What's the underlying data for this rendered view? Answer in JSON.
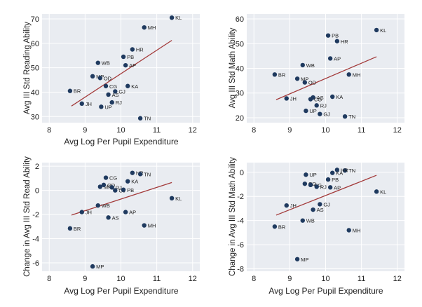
{
  "chart_data": [
    {
      "type": "scatter",
      "xlabel": "Avg Log Per Pupil Expenditure",
      "ylabel": "Avg III Std Reading Ability",
      "xlim": [
        7.8,
        12.2
      ],
      "ylim": [
        27.5,
        72
      ],
      "xticks": [
        8,
        9,
        10,
        11,
        12
      ],
      "yticks": [
        30,
        40,
        50,
        60,
        70
      ],
      "points": [
        {
          "label": "KL",
          "x": 11.42,
          "y": 70.5
        },
        {
          "label": "MH",
          "x": 10.65,
          "y": 66.5
        },
        {
          "label": "HR",
          "x": 10.32,
          "y": 57.5
        },
        {
          "label": "PB",
          "x": 10.07,
          "y": 54.5
        },
        {
          "label": "WB",
          "x": 9.36,
          "y": 52.0
        },
        {
          "label": "AP",
          "x": 10.13,
          "y": 51.0
        },
        {
          "label": "MP",
          "x": 9.21,
          "y": 46.5
        },
        {
          "label": "OD",
          "x": 9.42,
          "y": 45.8
        },
        {
          "label": "CG",
          "x": 9.58,
          "y": 42.5
        },
        {
          "label": "KA",
          "x": 10.19,
          "y": 42.5
        },
        {
          "label": "BR",
          "x": 8.58,
          "y": 40.5
        },
        {
          "label": "GJ",
          "x": 9.84,
          "y": 40.3
        },
        {
          "label": "AS",
          "x": 9.65,
          "y": 39.0
        },
        {
          "label": "RJ",
          "x": 9.75,
          "y": 35.8
        },
        {
          "label": "JH",
          "x": 8.91,
          "y": 35.3
        },
        {
          "label": "UP",
          "x": 9.45,
          "y": 34.0
        },
        {
          "label": "TN",
          "x": 10.54,
          "y": 29.3
        }
      ],
      "fit": {
        "x": [
          8.62,
          11.42
        ],
        "y": [
          34.3,
          61.2
        ]
      }
    },
    {
      "type": "scatter",
      "xlabel": "",
      "ylabel": "Avg III Std Math Ability",
      "xlim": [
        7.8,
        12.2
      ],
      "ylim": [
        18,
        62
      ],
      "xticks": [
        8,
        9,
        10,
        11,
        12
      ],
      "yticks": [
        20,
        30,
        40,
        50,
        60
      ],
      "points": [
        {
          "label": "KL",
          "x": 11.42,
          "y": 55.5
        },
        {
          "label": "PB",
          "x": 10.07,
          "y": 53.3
        },
        {
          "label": "HR",
          "x": 10.32,
          "y": 51.0
        },
        {
          "label": "AP",
          "x": 10.13,
          "y": 44.0
        },
        {
          "label": "WB",
          "x": 9.36,
          "y": 41.3
        },
        {
          "label": "BR",
          "x": 8.58,
          "y": 37.5
        },
        {
          "label": "MH",
          "x": 10.65,
          "y": 37.5
        },
        {
          "label": "MP",
          "x": 9.21,
          "y": 35.8
        },
        {
          "label": "OD",
          "x": 9.42,
          "y": 34.3
        },
        {
          "label": "AS",
          "x": 9.65,
          "y": 28.2
        },
        {
          "label": "CG",
          "x": 9.58,
          "y": 27.5
        },
        {
          "label": "JH",
          "x": 8.91,
          "y": 27.8
        },
        {
          "label": "KA",
          "x": 10.19,
          "y": 28.5
        },
        {
          "label": "RJ",
          "x": 9.75,
          "y": 25.0
        },
        {
          "label": "UP",
          "x": 9.45,
          "y": 22.8
        },
        {
          "label": "GJ",
          "x": 9.84,
          "y": 21.5
        },
        {
          "label": "TN",
          "x": 10.54,
          "y": 20.5
        }
      ],
      "fit": {
        "x": [
          8.62,
          11.42
        ],
        "y": [
          27.3,
          44.7
        ]
      }
    },
    {
      "type": "scatter",
      "xlabel": "Avg Log Per Pupil Expenditure",
      "ylabel": "Change in Avg III Std Read Ability",
      "xlim": [
        7.8,
        12.2
      ],
      "ylim": [
        -6.7,
        2.3
      ],
      "xticks": [
        8,
        9,
        10,
        11,
        12
      ],
      "yticks": [
        -6,
        -4,
        -2,
        0,
        2
      ],
      "points": [
        {
          "label": "HR",
          "x": 10.32,
          "y": 1.45
        },
        {
          "label": "TN",
          "x": 10.54,
          "y": 1.35
        },
        {
          "label": "CG",
          "x": 9.58,
          "y": 1.05
        },
        {
          "label": "KA",
          "x": 10.19,
          "y": 0.75
        },
        {
          "label": "MP",
          "x": 9.42,
          "y": 0.3
        },
        {
          "label": "OD",
          "x": 9.52,
          "y": 0.45
        },
        {
          "label": "RJ",
          "x": 9.75,
          "y": 0.25
        },
        {
          "label": "GJ",
          "x": 9.84,
          "y": 0.0
        },
        {
          "label": "PB",
          "x": 10.07,
          "y": 0.05
        },
        {
          "label": "KL",
          "x": 11.42,
          "y": -0.65
        },
        {
          "label": "WB",
          "x": 9.36,
          "y": -1.25
        },
        {
          "label": "AP",
          "x": 10.13,
          "y": -1.8
        },
        {
          "label": "JH",
          "x": 8.91,
          "y": -1.8
        },
        {
          "label": "AS",
          "x": 9.65,
          "y": -2.25
        },
        {
          "label": "MH",
          "x": 10.65,
          "y": -2.9
        },
        {
          "label": "BR",
          "x": 8.58,
          "y": -3.15
        },
        {
          "label": "MP",
          "x": 9.21,
          "y": -6.3
        }
      ],
      "fit": {
        "x": [
          8.62,
          11.42
        ],
        "y": [
          -2.05,
          0.65
        ]
      }
    },
    {
      "type": "scatter",
      "xlabel": "Avg Log Per Pupil Expenditure",
      "ylabel": "Change in Avg III Std Math Ability",
      "xlim": [
        7.8,
        12.2
      ],
      "ylim": [
        -8.2,
        0.8
      ],
      "xticks": [
        8,
        9,
        10,
        11,
        12
      ],
      "yticks": [
        -8,
        -6,
        -4,
        -2,
        0
      ],
      "points": [
        {
          "label": "TN",
          "x": 10.54,
          "y": 0.15
        },
        {
          "label": "HR",
          "x": 10.32,
          "y": 0.2
        },
        {
          "label": "KA",
          "x": 10.19,
          "y": -0.05
        },
        {
          "label": "UP",
          "x": 9.45,
          "y": -0.2
        },
        {
          "label": "PB",
          "x": 10.07,
          "y": -0.6
        },
        {
          "label": "OD",
          "x": 9.42,
          "y": -0.95
        },
        {
          "label": "CG",
          "x": 9.58,
          "y": -1.05
        },
        {
          "label": "RJ",
          "x": 9.75,
          "y": -1.2
        },
        {
          "label": "AP",
          "x": 10.13,
          "y": -1.25
        },
        {
          "label": "KL",
          "x": 11.42,
          "y": -1.6
        },
        {
          "label": "GJ",
          "x": 9.84,
          "y": -2.65
        },
        {
          "label": "JH",
          "x": 8.91,
          "y": -2.75
        },
        {
          "label": "AS",
          "x": 9.65,
          "y": -3.1
        },
        {
          "label": "WB",
          "x": 9.36,
          "y": -4.0
        },
        {
          "label": "BR",
          "x": 8.58,
          "y": -4.5
        },
        {
          "label": "MH",
          "x": 10.65,
          "y": -4.8
        },
        {
          "label": "MP",
          "x": 9.21,
          "y": -7.2
        }
      ],
      "fit": {
        "x": [
          8.62,
          11.42
        ],
        "y": [
          -3.55,
          -0.25
        ]
      }
    }
  ],
  "colors": {
    "points": "#1f3a5f",
    "fit_line": "#a33a3a",
    "panel_bg": "#e9ecf1",
    "grid": "#ffffff",
    "text": "#222222"
  }
}
